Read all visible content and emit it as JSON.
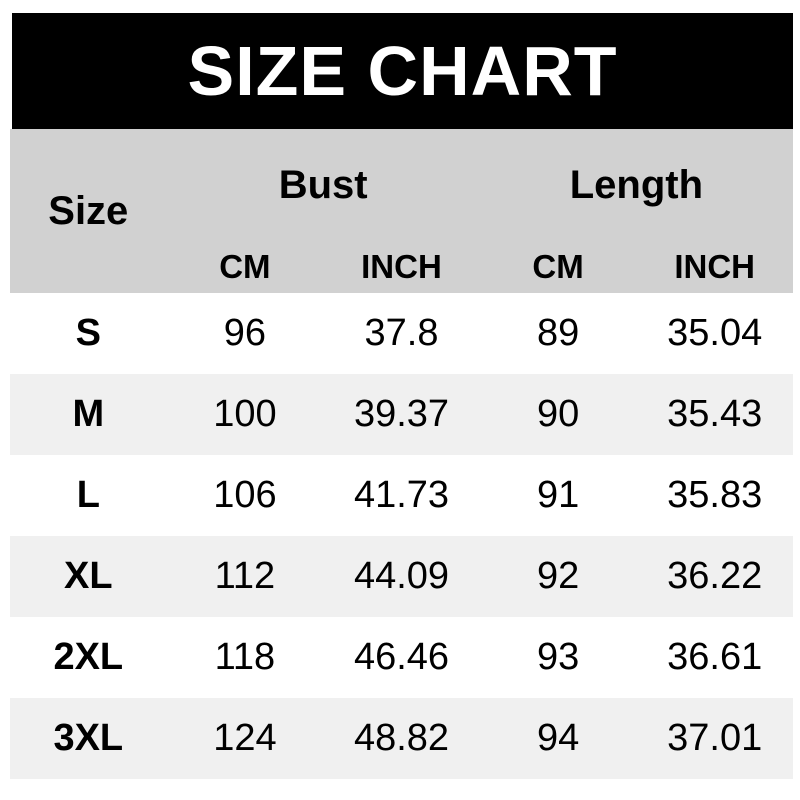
{
  "banner": {
    "title": "SIZE CHART"
  },
  "chart_data": {
    "type": "table",
    "title": "SIZE CHART",
    "corner_header": "Size",
    "column_groups": [
      {
        "label": "Bust",
        "columns": [
          "CM",
          "INCH"
        ]
      },
      {
        "label": "Length",
        "columns": [
          "CM",
          "INCH"
        ]
      }
    ],
    "sub_headers": [
      "CM",
      "INCH",
      "CM",
      "INCH"
    ],
    "columns": [
      "Size",
      "Bust CM",
      "Bust INCH",
      "Length CM",
      "Length INCH"
    ],
    "rows": [
      [
        "S",
        96,
        37.8,
        89,
        35.04
      ],
      [
        "M",
        100,
        39.37,
        90,
        35.43
      ],
      [
        "L",
        106,
        41.73,
        91,
        35.83
      ],
      [
        "XL",
        112,
        44.09,
        92,
        36.22
      ],
      [
        "2XL",
        118,
        46.46,
        93,
        36.61
      ],
      [
        "3XL",
        124,
        48.82,
        94,
        37.01
      ]
    ]
  },
  "colors": {
    "banner_bg": "#000000",
    "banner_text": "#ffffff",
    "header_bg": "#d1d1d1",
    "row_bg": "#ffffff",
    "row_alt_bg": "#f0f0f0",
    "text": "#000000"
  }
}
